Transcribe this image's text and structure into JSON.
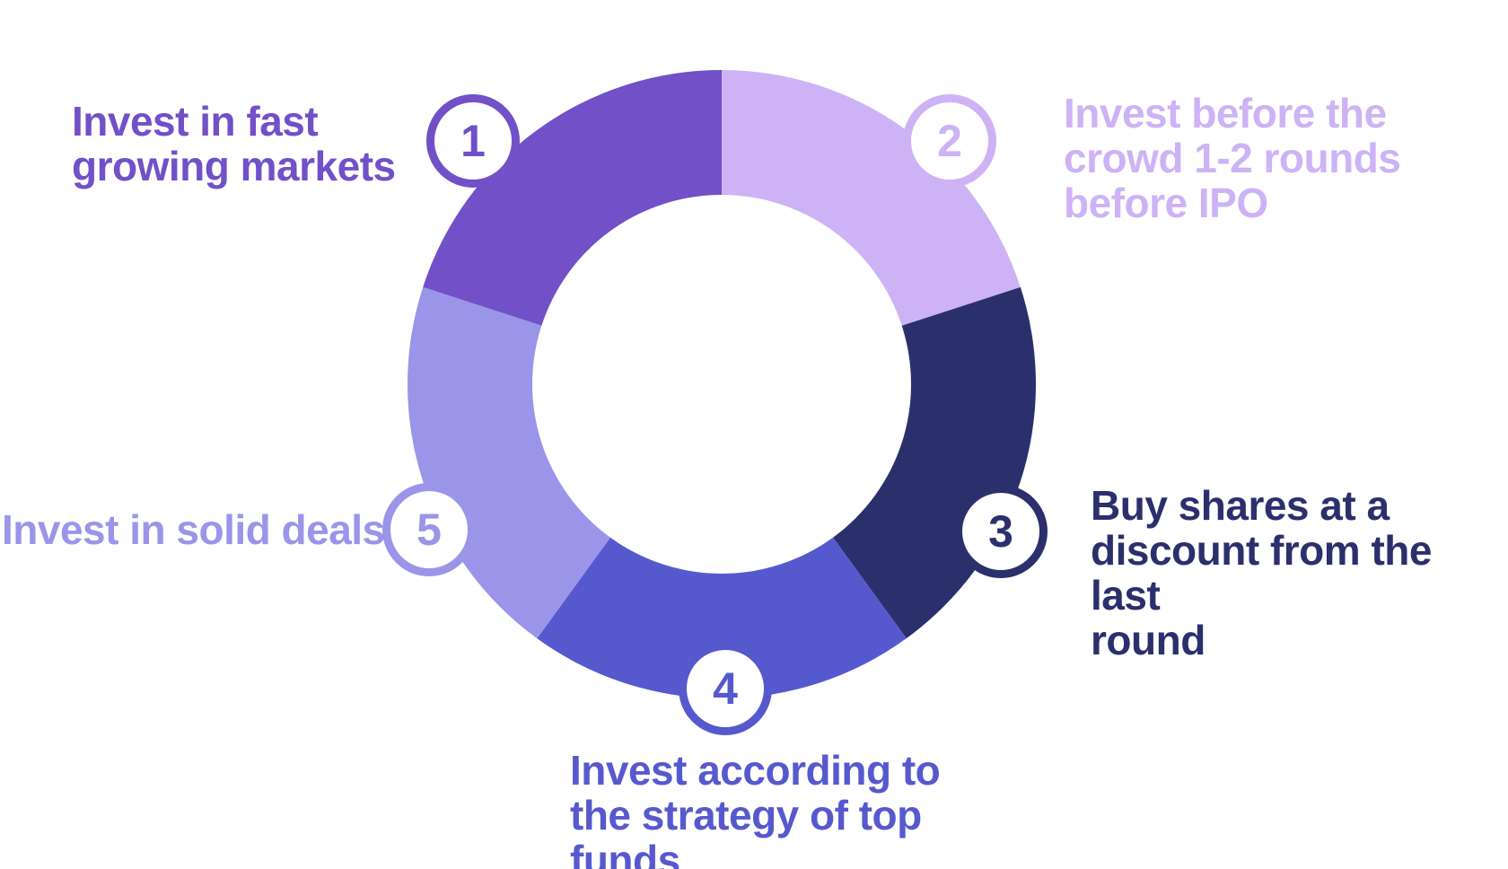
{
  "background": "#FFFFFF",
  "chart_data": {
    "type": "pie",
    "subtype": "donut",
    "title": "",
    "categories": [
      "Invest in fast growing markets",
      "Invest before the crowd 1-2 rounds before IPO",
      "Buy shares at a discount from the last round",
      "Invest according to the strategy of top funds",
      "Invest in solid deals"
    ],
    "values": [
      20,
      20,
      20,
      20,
      20
    ],
    "colors": [
      "#7150C8",
      "#CDB3F5",
      "#2B2F6C",
      "#5659CE",
      "#9A95E9"
    ],
    "direction": "clockwise",
    "first_boundary_angle_deg": 0,
    "legend_position": "around"
  },
  "steps": [
    {
      "number": "1",
      "label": "Invest in fast\ngrowing markets",
      "color": "#7150C8",
      "angles": [
        288,
        360
      ]
    },
    {
      "number": "2",
      "label": "Invest before the\ncrowd 1-2 rounds\nbefore IPO",
      "color": "#CDB3F5",
      "angles": [
        0,
        72
      ]
    },
    {
      "number": "3",
      "label": "Buy shares at a\ndiscount from the last\nround",
      "color": "#2B2F6C",
      "angles": [
        72,
        144
      ]
    },
    {
      "number": "4",
      "label": "Invest according to\nthe strategy of top\nfunds",
      "color": "#5659CE",
      "angles": [
        144,
        216
      ]
    },
    {
      "number": "5",
      "label": "Invest in solid deals",
      "color": "#9A95E9",
      "angles": [
        216,
        288
      ]
    }
  ]
}
